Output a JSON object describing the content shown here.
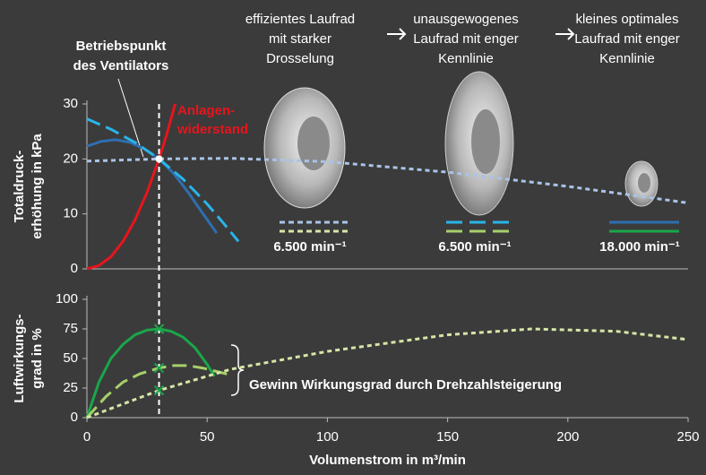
{
  "chart_data": [
    {
      "type": "line",
      "ylabel": [
        "Totaldruck-",
        "erhöhung in kPa"
      ],
      "xlim": [
        0,
        250
      ],
      "ylim": [
        0,
        30
      ],
      "yticks": [
        0,
        10,
        20,
        30
      ],
      "series": [
        {
          "color": "#e8141c",
          "style": "solid",
          "x": [
            0,
            5,
            10,
            15,
            20,
            25,
            30,
            33,
            36.7
          ],
          "values": [
            0,
            0.6,
            2.2,
            5,
            8.9,
            13.9,
            20,
            24.2,
            30
          ]
        },
        {
          "color": "#2e6fb0",
          "style": "solid",
          "x": [
            0,
            6,
            12,
            18,
            24,
            30,
            36,
            42,
            48,
            54
          ],
          "values": [
            22.3,
            23.2,
            23.5,
            23,
            21.8,
            20,
            17.4,
            14,
            10.2,
            6.5
          ]
        },
        {
          "color": "#29b5e8",
          "style": "dashed",
          "x": [
            0,
            10,
            20,
            30,
            40,
            50,
            57,
            63
          ],
          "values": [
            27.3,
            25.4,
            23,
            20,
            16.3,
            11.8,
            8.2,
            5
          ]
        },
        {
          "color": "#a9c4e6",
          "style": "dotted",
          "x": [
            0,
            30,
            60,
            100,
            150,
            200,
            250
          ],
          "values": [
            19.6,
            20,
            20.1,
            19.5,
            17.6,
            15,
            12
          ]
        }
      ],
      "operating_point": {
        "x": 30,
        "y": 20
      },
      "annotations": {
        "operating": [
          "Betriebspunkt",
          "des Ventilators"
        ],
        "system": [
          "Anlagen-",
          "widerstand"
        ]
      },
      "captions": [
        [
          "effizientes Laufrad",
          "mit starker",
          "Drosselung"
        ],
        [
          "unausgewogenes",
          "Laufrad mit enger",
          "Kennlinie"
        ],
        [
          "kleines optimales",
          "Laufrad mit enger",
          "Kennlinie"
        ]
      ],
      "speeds": [
        "6.500 min⁻¹",
        "6.500 min⁻¹",
        "18.000 min⁻¹"
      ]
    },
    {
      "type": "line",
      "ylabel": [
        "Luftwirkungs-",
        "grad in %"
      ],
      "xlabel": "Volumenstrom in m³/min",
      "xlim": [
        0,
        250
      ],
      "xticks": [
        0,
        50,
        100,
        150,
        200,
        250
      ],
      "ylim": [
        0,
        100
      ],
      "yticks": [
        0,
        25,
        50,
        75,
        100
      ],
      "series": [
        {
          "color": "#1aa64a",
          "style": "solid",
          "x": [
            0,
            5,
            10,
            15,
            20,
            25,
            30,
            35,
            40,
            45,
            50,
            53
          ],
          "values": [
            0,
            30,
            50,
            62,
            70,
            74,
            75,
            73,
            68,
            59,
            45,
            35
          ]
        },
        {
          "color": "#a6d06a",
          "style": "dashed",
          "x": [
            0,
            8,
            15,
            22,
            30,
            36,
            42,
            48,
            54,
            60
          ],
          "values": [
            0,
            18,
            30,
            37,
            42,
            44,
            44,
            42,
            39,
            36
          ]
        },
        {
          "color": "#d6e6a6",
          "style": "dotted",
          "x": [
            0,
            30,
            60,
            100,
            150,
            185,
            220,
            250
          ],
          "values": [
            0,
            23,
            41,
            56,
            70,
            75,
            73,
            66
          ]
        }
      ],
      "markers": {
        "color": "#1aa64a",
        "x": [
          30,
          30,
          30
        ],
        "values": [
          75,
          42,
          23
        ]
      },
      "annotations": {
        "gain": "Gewinn Wirkungsgrad durch Drehzahlsteigerung"
      }
    }
  ]
}
